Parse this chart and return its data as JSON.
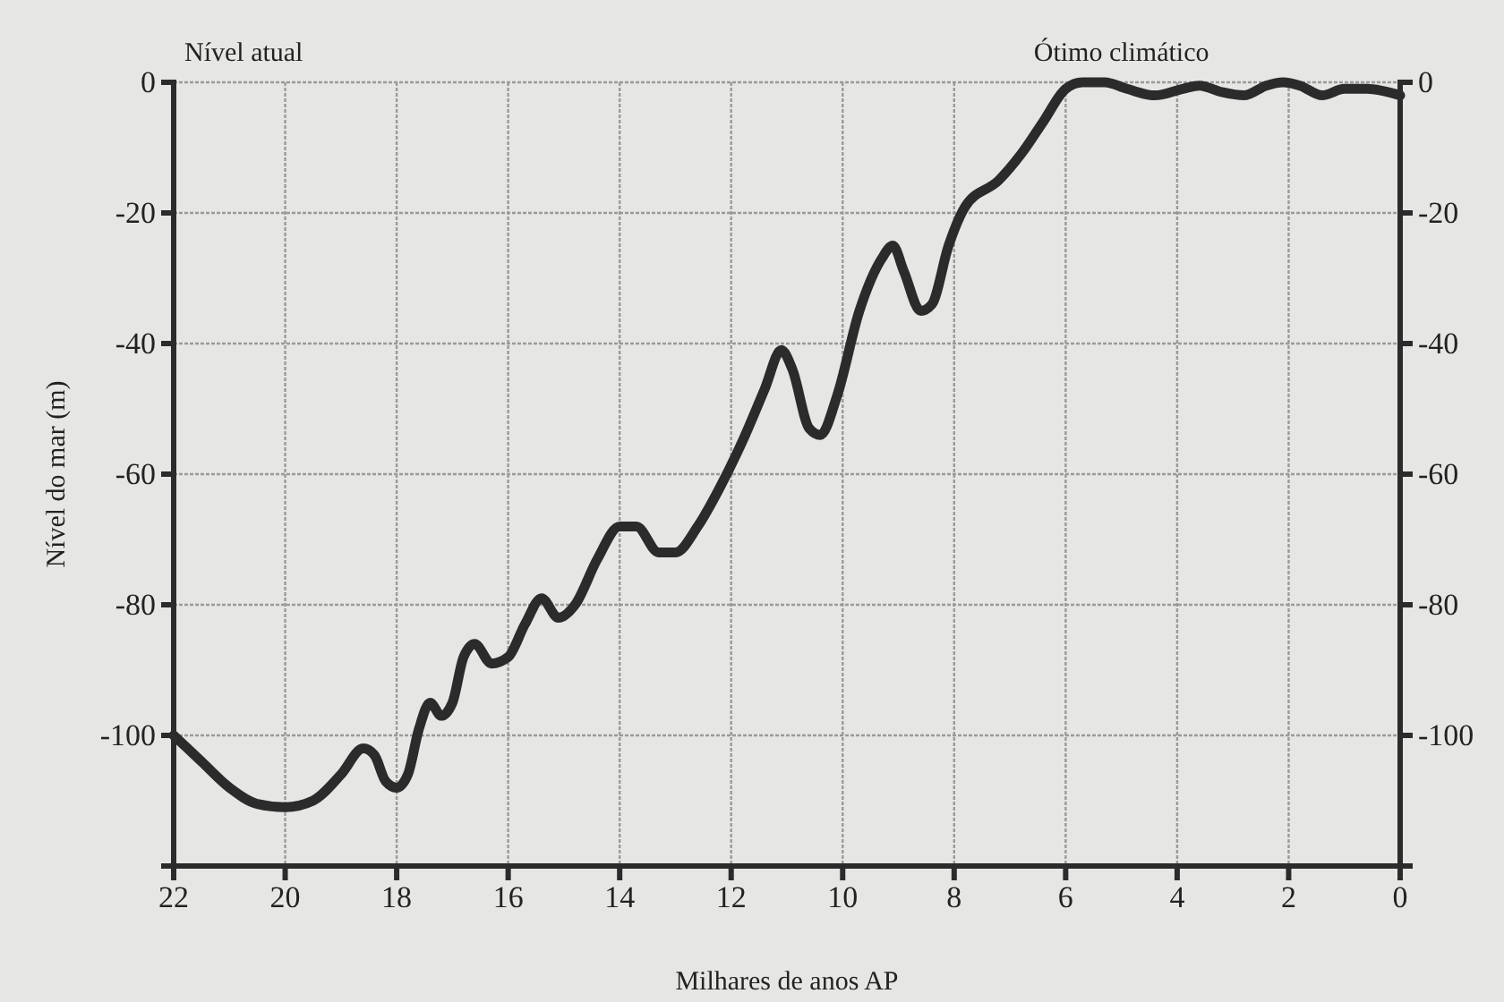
{
  "chart_data": {
    "type": "line",
    "xlabel": "Milhares de anos AP",
    "ylabel": "Nível do mar (m)",
    "annotations": [
      "Nível atual",
      {
        "text": "Ótimo climático",
        "x": 5,
        "y": 0
      }
    ],
    "series": [
      {
        "color": "#2b2b2b",
        "x": [
          22,
          21.5,
          21,
          20.5,
          20,
          19.5,
          19,
          18.6,
          18.4,
          18.2,
          18,
          17.8,
          17.6,
          17.4,
          17.2,
          17,
          16.8,
          16.6,
          16.3,
          16,
          15.7,
          15.4,
          15.1,
          14.8,
          14.4,
          14,
          13.7,
          13.3,
          13,
          12.6,
          12.2,
          11.8,
          11.4,
          11.1,
          10.9,
          10.6,
          10.4,
          10.1,
          9.7,
          9.3,
          9.1,
          8.9,
          8.6,
          8.4,
          8.1,
          7.8,
          7.2,
          6.8,
          6.4,
          6,
          5.7,
          5.3,
          4.9,
          4.4,
          3.9,
          3.6,
          3.2,
          2.8,
          2.4,
          2.1,
          1.8,
          1.4,
          1,
          0.6,
          0
        ],
        "values": [
          -100,
          -104,
          -108,
          -110.5,
          -111,
          -110,
          -106,
          -102,
          -103,
          -107,
          -108,
          -106,
          -99,
          -95,
          -97,
          -95,
          -88,
          -86,
          -89,
          -88,
          -83,
          -79,
          -82,
          -80,
          -73,
          -68,
          -68,
          -72,
          -72,
          -68,
          -62,
          -55,
          -47,
          -41,
          -44,
          -53,
          -54,
          -48,
          -35,
          -27,
          -25,
          -29,
          -35,
          -34,
          -25,
          -19,
          -15,
          -11,
          -6,
          -1,
          0,
          0,
          -1,
          -2,
          -1,
          -0.5,
          -1.5,
          -2,
          -0.5,
          0,
          -0.5,
          -2,
          -1,
          -1,
          -2
        ]
      }
    ],
    "xlim": [
      22,
      0
    ],
    "xticks": [
      22,
      20,
      18,
      16,
      14,
      12,
      10,
      8,
      6,
      4,
      2,
      0
    ],
    "ylim": [
      -120,
      0
    ],
    "yticks": [
      0,
      -20,
      -40,
      -60,
      -80,
      -100
    ],
    "y2lim": [
      -120,
      0
    ],
    "y2ticks": [
      0,
      -20,
      -40,
      -60,
      -80,
      -100
    ],
    "grid": true,
    "marker": "none",
    "line_style": "solid"
  }
}
